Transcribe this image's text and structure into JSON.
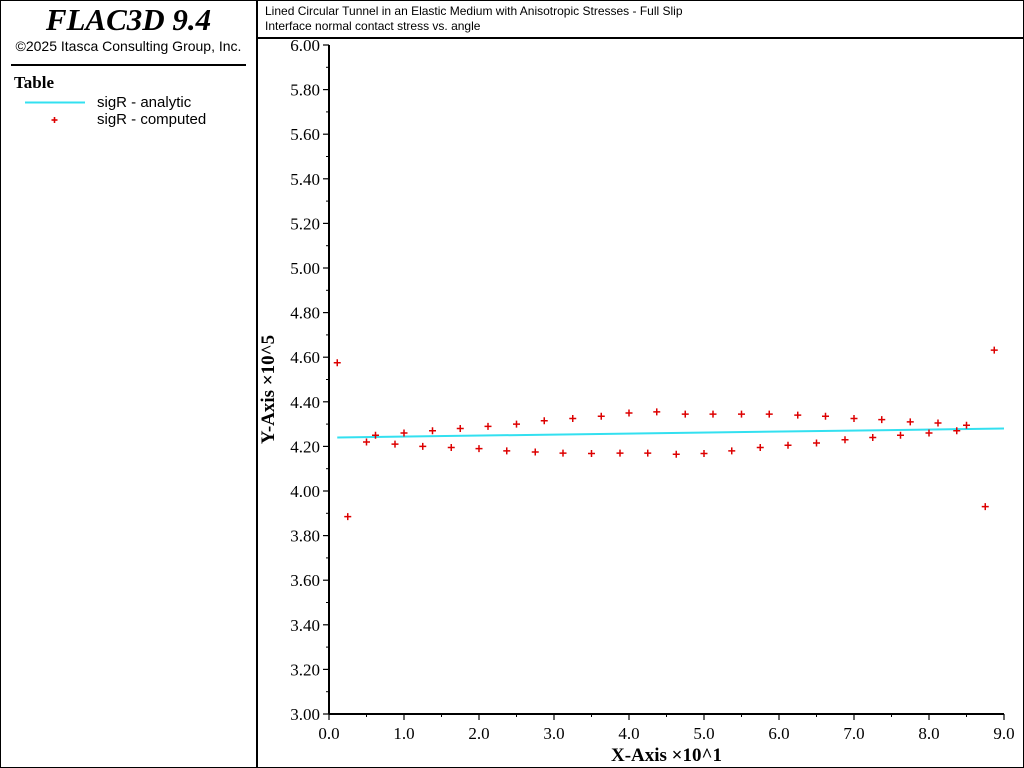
{
  "app": {
    "title": "FLAC3D 9.4",
    "copyright": "©2025 Itasca Consulting Group, Inc."
  },
  "legend": {
    "heading": "Table",
    "items": [
      {
        "label": "sigR - analytic",
        "kind": "line",
        "color": "#33e0f0"
      },
      {
        "label": "sigR - computed",
        "kind": "marker",
        "color": "#dd0000"
      }
    ]
  },
  "plot": {
    "title": "Lined Circular Tunnel in an Elastic Medium with Anisotropic Stresses - Full Slip",
    "subtitle": "Interface normal contact stress vs. angle"
  },
  "chart_data": {
    "type": "scatter",
    "xlabel": "X-Axis ×10^1",
    "ylabel": "Y-Axis ×10^5",
    "xlim": [
      0.0,
      9.0
    ],
    "ylim": [
      3.0,
      6.0
    ],
    "xticks": [
      "0.0",
      "1.0",
      "2.0",
      "3.0",
      "4.0",
      "5.0",
      "6.0",
      "7.0",
      "8.0",
      "9.0"
    ],
    "yticks": [
      "3.00",
      "3.20",
      "3.40",
      "3.60",
      "3.80",
      "4.00",
      "4.20",
      "4.40",
      "4.60",
      "4.80",
      "5.00",
      "5.20",
      "5.40",
      "5.60",
      "5.80",
      "6.00"
    ],
    "grid": false,
    "series": [
      {
        "name": "sigR - analytic",
        "style": "line",
        "color": "#33e0f0",
        "x": [
          0.11,
          9.0
        ],
        "y": [
          4.24,
          4.28
        ]
      },
      {
        "name": "sigR - computed",
        "style": "marker",
        "color": "#dd0000",
        "x": [
          0.11,
          0.25,
          0.5,
          0.62,
          0.88,
          1.0,
          1.25,
          1.38,
          1.63,
          1.75,
          2.0,
          2.12,
          2.37,
          2.5,
          2.75,
          2.87,
          3.12,
          3.25,
          3.5,
          3.63,
          3.88,
          4.0,
          4.25,
          4.37,
          4.63,
          4.75,
          5.0,
          5.12,
          5.37,
          5.5,
          5.75,
          5.87,
          6.12,
          6.25,
          6.5,
          6.62,
          6.88,
          7.0,
          7.25,
          7.37,
          7.62,
          7.75,
          8.0,
          8.12,
          8.37,
          8.5,
          8.75,
          8.87
        ],
        "y": [
          4.575,
          3.885,
          4.22,
          4.25,
          4.21,
          4.26,
          4.2,
          4.27,
          4.195,
          4.28,
          4.19,
          4.29,
          4.18,
          4.3,
          4.175,
          4.315,
          4.17,
          4.325,
          4.168,
          4.335,
          4.17,
          4.35,
          4.17,
          4.355,
          4.165,
          4.345,
          4.168,
          4.345,
          4.18,
          4.345,
          4.195,
          4.345,
          4.205,
          4.34,
          4.215,
          4.335,
          4.23,
          4.325,
          4.24,
          4.32,
          4.25,
          4.31,
          4.26,
          4.305,
          4.27,
          4.295,
          3.93,
          4.632
        ]
      }
    ]
  }
}
